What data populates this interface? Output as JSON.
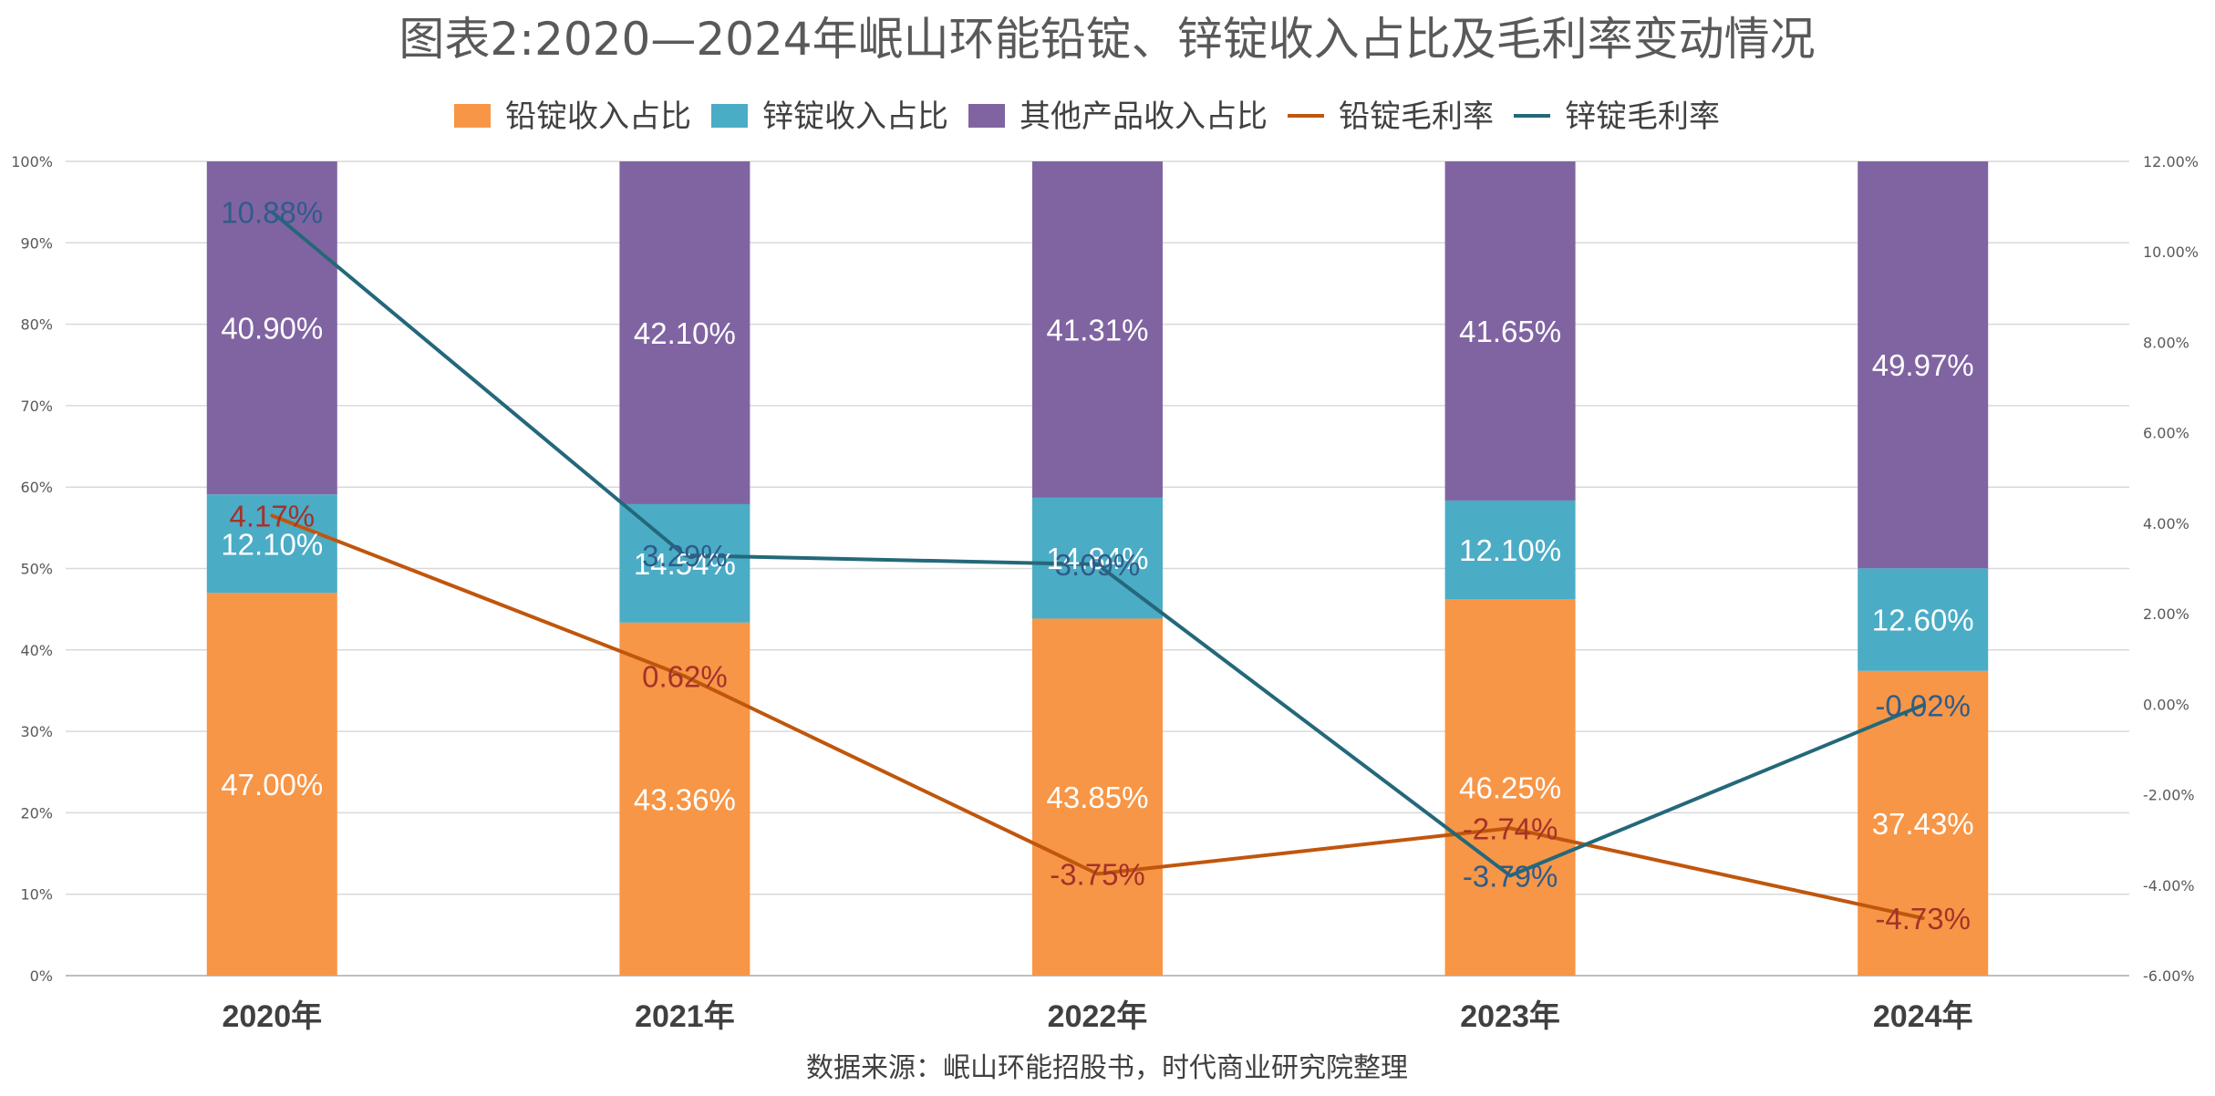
{
  "chart_data": {
    "type": "bar",
    "stacked": true,
    "title": "图表2:2020—2024年岷山环能铅锭、锌锭收入占比及毛利率变动情况",
    "source": "数据来源：岷山环能招股书，时代商业研究院整理",
    "categories": [
      "2020年",
      "2021年",
      "2022年",
      "2023年",
      "2024年"
    ],
    "y_left": {
      "range": [
        0,
        100
      ],
      "ticks": [
        "0%",
        "10%",
        "20%",
        "30%",
        "40%",
        "50%",
        "60%",
        "70%",
        "80%",
        "90%",
        "100%"
      ]
    },
    "y_right": {
      "range": [
        -6,
        12
      ],
      "ticks": [
        "-6.00%",
        "-4.00%",
        "-2.00%",
        "0.00%",
        "2.00%",
        "4.00%",
        "6.00%",
        "8.00%",
        "10.00%",
        "12.00%"
      ]
    },
    "grid": true,
    "legend_position": "top",
    "bar_series": [
      {
        "name": "铅锭收入占比",
        "color": "#F79646",
        "values": [
          47.0,
          43.36,
          43.85,
          46.25,
          37.43
        ],
        "labels": [
          "47.00%",
          "43.36%",
          "43.85%",
          "46.25%",
          "37.43%"
        ]
      },
      {
        "name": "锌锭收入占比",
        "color": "#4BACC6",
        "values": [
          12.1,
          14.54,
          14.84,
          12.1,
          12.6
        ],
        "labels": [
          "12.10%",
          "14.54%",
          "14.84%",
          "12.10%",
          "12.60%"
        ]
      },
      {
        "name": "其他产品收入占比",
        "color": "#8064A2",
        "values": [
          40.9,
          42.1,
          41.31,
          41.65,
          49.97
        ],
        "labels": [
          "40.90%",
          "42.10%",
          "41.31%",
          "41.65%",
          "49.97%"
        ]
      }
    ],
    "line_series": [
      {
        "name": "铅锭毛利率",
        "color": "#C0560D",
        "label_color": "#A5322A",
        "axis": "right",
        "values": [
          4.17,
          0.62,
          -3.75,
          -2.74,
          -4.73
        ],
        "labels": [
          "4.17%",
          "0.62%",
          "-3.75%",
          "-2.74%",
          "-4.73%"
        ]
      },
      {
        "name": "锌锭毛利率",
        "color": "#24687A",
        "label_color": "#2F5C8A",
        "axis": "right",
        "values": [
          10.88,
          3.29,
          3.09,
          -3.79,
          -0.02
        ],
        "labels": [
          "10.88%",
          "3.29%",
          "3.09%",
          "-3.79%",
          "-0.02%"
        ]
      }
    ]
  }
}
